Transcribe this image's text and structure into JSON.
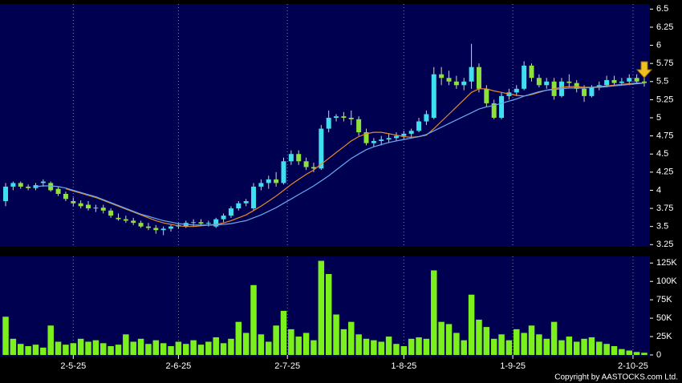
{
  "chart_data": [
    {
      "type": "candlestick",
      "xlim": [
        -0.75,
        85.75
      ],
      "xticks": [
        9,
        23,
        37.5,
        53,
        67.5,
        83.5
      ],
      "ylim": [
        3.22,
        6.57
      ],
      "yticks": [
        3.25,
        3.5,
        3.75,
        4,
        4.25,
        4.5,
        4.75,
        5,
        5.25,
        5.5,
        5.75,
        6,
        6.25,
        6.5
      ],
      "grid": true,
      "up_color": "#3ee0f0",
      "down_color": "#8ee03a",
      "open": [
        3.85,
        4.05,
        4.1,
        4.05,
        4.03,
        4.1,
        4.1,
        4.02,
        3.95,
        3.85,
        3.82,
        3.8,
        3.75,
        3.76,
        3.72,
        3.62,
        3.6,
        3.58,
        3.55,
        3.5,
        3.48,
        3.45,
        3.47,
        3.5,
        3.5,
        3.55,
        3.56,
        3.54,
        3.5,
        3.6,
        3.65,
        3.75,
        3.82,
        3.75,
        4.05,
        4.1,
        4.15,
        4.1,
        4.4,
        4.5,
        4.4,
        4.32,
        4.3,
        4.85,
        5.0,
        5.02,
        5.0,
        4.98,
        4.8,
        4.65,
        4.68,
        4.7,
        4.72,
        4.75,
        4.78,
        4.82,
        4.95,
        5.0,
        5.6,
        5.55,
        5.5,
        5.45,
        5.5,
        5.7,
        5.4,
        5.2,
        5.0,
        5.3,
        5.35,
        5.4,
        5.72,
        5.55,
        5.45,
        5.5,
        5.3,
        5.5,
        5.48,
        5.4,
        5.3,
        5.42,
        5.45,
        5.52,
        5.48,
        5.5,
        5.55,
        5.5
      ],
      "high": [
        4.1,
        4.12,
        4.12,
        4.08,
        4.1,
        4.15,
        4.12,
        4.05,
        3.98,
        3.9,
        3.86,
        3.85,
        3.8,
        3.8,
        3.75,
        3.68,
        3.65,
        3.62,
        3.58,
        3.55,
        3.52,
        3.5,
        3.52,
        3.55,
        3.58,
        3.6,
        3.6,
        3.58,
        3.62,
        3.68,
        3.78,
        3.85,
        3.88,
        4.1,
        4.15,
        4.2,
        4.25,
        4.45,
        4.55,
        4.55,
        4.45,
        4.38,
        4.9,
        5.1,
        5.05,
        5.08,
        5.1,
        5.02,
        4.85,
        4.72,
        4.75,
        4.78,
        4.8,
        4.82,
        4.85,
        5.0,
        5.1,
        5.7,
        5.7,
        5.65,
        5.58,
        5.55,
        6.02,
        5.75,
        5.45,
        5.25,
        5.35,
        5.4,
        5.45,
        5.78,
        5.75,
        5.6,
        5.55,
        5.55,
        5.55,
        5.6,
        5.52,
        5.45,
        5.45,
        5.5,
        5.58,
        5.58,
        5.55,
        5.6,
        5.6,
        5.55
      ],
      "low": [
        3.78,
        4.0,
        4.02,
        4.0,
        4.0,
        4.05,
        3.98,
        3.92,
        3.85,
        3.78,
        3.75,
        3.72,
        3.7,
        3.68,
        3.62,
        3.58,
        3.55,
        3.52,
        3.48,
        3.45,
        3.4,
        3.38,
        3.43,
        3.47,
        3.48,
        3.5,
        3.52,
        3.5,
        3.48,
        3.56,
        3.62,
        3.72,
        3.78,
        3.72,
        4.0,
        4.02,
        4.05,
        4.08,
        4.35,
        4.35,
        4.28,
        4.25,
        4.28,
        4.8,
        4.95,
        4.95,
        4.9,
        4.75,
        4.62,
        4.6,
        4.62,
        4.65,
        4.68,
        4.7,
        4.72,
        4.8,
        4.9,
        4.98,
        5.45,
        5.45,
        5.4,
        5.38,
        5.4,
        5.35,
        5.15,
        4.98,
        4.98,
        5.25,
        5.3,
        5.38,
        5.5,
        5.42,
        5.4,
        5.25,
        5.28,
        5.42,
        5.35,
        5.22,
        5.28,
        5.38,
        5.42,
        5.45,
        5.45,
        5.45,
        5.47,
        5.43
      ],
      "close": [
        4.05,
        4.1,
        4.05,
        4.03,
        4.07,
        4.12,
        4.0,
        3.95,
        3.88,
        3.82,
        3.78,
        3.75,
        3.76,
        3.72,
        3.65,
        3.6,
        3.58,
        3.55,
        3.5,
        3.48,
        3.45,
        3.47,
        3.5,
        3.52,
        3.55,
        3.56,
        3.54,
        3.55,
        3.6,
        3.65,
        3.75,
        3.82,
        3.85,
        4.05,
        4.1,
        4.15,
        4.1,
        4.4,
        4.5,
        4.4,
        4.32,
        4.3,
        4.85,
        5.0,
        5.02,
        5.0,
        4.98,
        4.8,
        4.65,
        4.68,
        4.7,
        4.72,
        4.75,
        4.78,
        4.82,
        4.95,
        5.05,
        5.6,
        5.55,
        5.5,
        5.45,
        5.5,
        5.7,
        5.4,
        5.2,
        5.0,
        5.3,
        5.35,
        5.4,
        5.72,
        5.55,
        5.45,
        5.5,
        5.3,
        5.5,
        5.48,
        5.4,
        5.3,
        5.42,
        5.45,
        5.52,
        5.48,
        5.5,
        5.55,
        5.5,
        5.48
      ],
      "lines": [
        {
          "color": "#e8892a",
          "values": [
            null,
            null,
            null,
            null,
            null,
            null,
            null,
            null,
            4.02,
            3.99,
            3.96,
            3.93,
            3.9,
            3.86,
            3.82,
            3.78,
            3.74,
            3.7,
            3.66,
            3.62,
            3.58,
            3.55,
            3.53,
            3.51,
            3.5,
            3.5,
            3.51,
            3.52,
            3.53,
            3.55,
            3.58,
            3.62,
            3.66,
            3.72,
            3.78,
            3.85,
            3.92,
            4.0,
            4.08,
            4.15,
            4.22,
            4.28,
            4.36,
            4.44,
            4.52,
            4.6,
            4.68,
            4.74,
            4.78,
            4.8,
            4.8,
            4.78,
            4.76,
            4.74,
            4.73,
            4.74,
            4.76,
            4.85,
            4.95,
            5.05,
            5.15,
            5.25,
            5.35,
            5.4,
            5.4,
            5.37,
            5.35,
            5.33,
            5.31,
            5.3,
            5.32,
            5.35,
            5.38,
            5.4,
            5.42,
            5.43,
            5.43,
            5.42,
            5.42,
            5.43,
            5.44,
            5.45,
            5.46,
            5.47,
            5.48,
            5.48
          ]
        },
        {
          "color": "#6aa8f0",
          "values": [
            null,
            null,
            null,
            null,
            4.05,
            4.06,
            4.06,
            4.05,
            4.03,
            4.0,
            3.97,
            3.94,
            3.91,
            3.87,
            3.83,
            3.79,
            3.75,
            3.71,
            3.67,
            3.64,
            3.61,
            3.58,
            3.56,
            3.54,
            3.53,
            3.52,
            3.52,
            3.52,
            3.52,
            3.53,
            3.54,
            3.56,
            3.58,
            3.62,
            3.66,
            3.71,
            3.76,
            3.82,
            3.88,
            3.94,
            4.0,
            4.06,
            4.13,
            4.2,
            4.28,
            4.36,
            4.44,
            4.5,
            4.56,
            4.6,
            4.63,
            4.66,
            4.68,
            4.7,
            4.72,
            4.74,
            4.77,
            4.82,
            4.87,
            4.92,
            4.97,
            5.02,
            5.07,
            5.12,
            5.15,
            5.17,
            5.2,
            5.23,
            5.26,
            5.3,
            5.33,
            5.36,
            5.38,
            5.39,
            5.4,
            5.41,
            5.41,
            5.41,
            5.42,
            5.42,
            5.43,
            5.44,
            5.45,
            5.46,
            5.47,
            5.48
          ]
        }
      ]
    },
    {
      "type": "bar",
      "xlim": [
        -0.75,
        85.75
      ],
      "xticks": [
        {
          "value": 9,
          "label": "2-5-25"
        },
        {
          "value": 23,
          "label": "2-6-25"
        },
        {
          "value": 37.5,
          "label": "2-7-25"
        },
        {
          "value": 53,
          "label": "1-8-25"
        },
        {
          "value": 67.5,
          "label": "1-9-25"
        },
        {
          "value": 83.5,
          "label": "2-10-25"
        }
      ],
      "ylim": [
        0,
        134000
      ],
      "yticks": [
        0,
        {
          "value": 25000,
          "label": "25K"
        },
        {
          "value": 50000,
          "label": "50K"
        },
        {
          "value": 75000,
          "label": "75K"
        },
        {
          "value": 100000,
          "label": "100K"
        },
        {
          "value": 125000,
          "label": "125K"
        }
      ],
      "grid": true,
      "color": "#7cf01c",
      "values": [
        52000,
        22000,
        15000,
        12000,
        14000,
        10000,
        40000,
        18000,
        14000,
        16000,
        22000,
        18000,
        20000,
        16000,
        12000,
        14000,
        28000,
        18000,
        22000,
        15000,
        20000,
        16000,
        12000,
        18000,
        15000,
        20000,
        14000,
        18000,
        24000,
        16000,
        22000,
        45000,
        30000,
        95000,
        28000,
        18000,
        40000,
        60000,
        35000,
        25000,
        30000,
        20000,
        128000,
        110000,
        55000,
        35000,
        45000,
        28000,
        22000,
        20000,
        18000,
        25000,
        15000,
        12000,
        22000,
        24000,
        22000,
        115000,
        45000,
        42000,
        30000,
        20000,
        82000,
        48000,
        38000,
        22000,
        28000,
        20000,
        35000,
        30000,
        40000,
        28000,
        22000,
        45000,
        20000,
        25000,
        18000,
        22000,
        24000,
        18000,
        15000,
        12000,
        8000,
        6000,
        4000,
        3000
      ]
    }
  ],
  "copyright": "Copyright by AASTOCKS.com Ltd."
}
